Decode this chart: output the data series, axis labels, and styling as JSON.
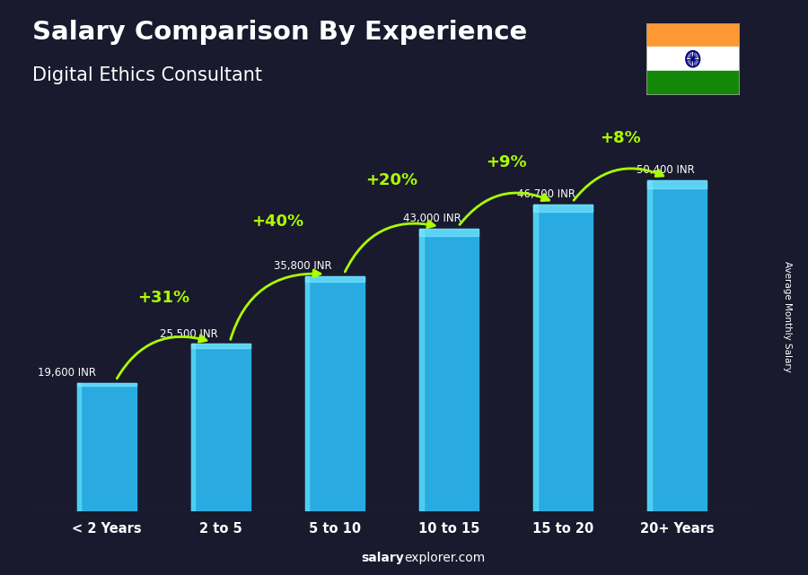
{
  "title": "Salary Comparison By Experience",
  "subtitle": "Digital Ethics Consultant",
  "categories": [
    "< 2 Years",
    "2 to 5",
    "5 to 10",
    "10 to 15",
    "15 to 20",
    "20+ Years"
  ],
  "values": [
    19600,
    25500,
    35800,
    43000,
    46700,
    50400
  ],
  "salary_labels": [
    "19,600 INR",
    "25,500 INR",
    "35,800 INR",
    "43,000 INR",
    "46,700 INR",
    "50,400 INR"
  ],
  "pct_changes": [
    null,
    "+31%",
    "+40%",
    "+20%",
    "+9%",
    "+8%"
  ],
  "bar_color_main": "#29ABE2",
  "bar_color_left": "#5DDBF5",
  "bar_color_top": "#7FECFF",
  "background_color": "#1a1a2e",
  "text_color_white": "#FFFFFF",
  "text_color_green": "#AAFF00",
  "ylabel": "Average Monthly Salary",
  "footer_bold": "salary",
  "footer_normal": "explorer.com",
  "ylim": [
    0,
    62000
  ],
  "bar_width": 0.52
}
